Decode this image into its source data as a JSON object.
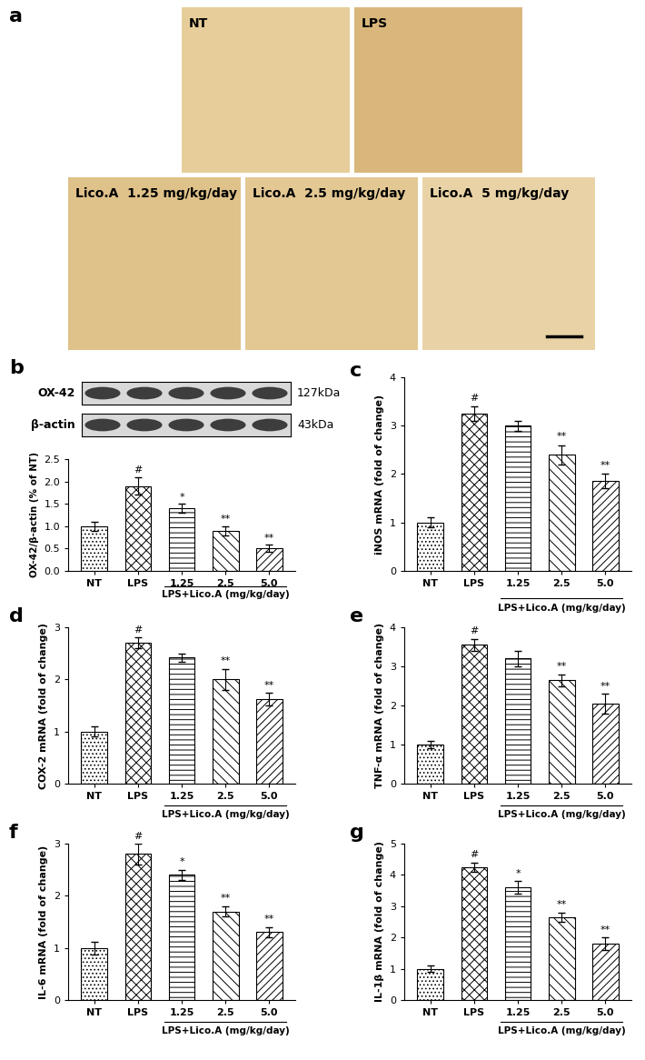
{
  "panel_a": {
    "panel": "a",
    "images": [
      "NT",
      "LPS",
      "Lico.A  1.25 mg/kg/day",
      "Lico.A  2.5 mg/kg/day",
      "Lico.A  5 mg/kg/day"
    ]
  },
  "blot": {
    "panel": "b",
    "bands": [
      {
        "name": "OX-42",
        "size": "127kDa"
      },
      {
        "name": "β-actin",
        "size": "43kDa"
      }
    ]
  },
  "chart_data": [
    {
      "panel": "b",
      "type": "bar",
      "ylabel": "OX-42/β-actin (% of NT)",
      "categories": [
        "NT",
        "LPS",
        "1.25",
        "2.5",
        "5.0"
      ],
      "group_label": "LPS+Lico.A (mg/kg/day)",
      "values": [
        1.0,
        1.9,
        1.4,
        0.9,
        0.5
      ],
      "errors": [
        0.1,
        0.2,
        0.1,
        0.1,
        0.08
      ],
      "annotations": [
        null,
        "#",
        "*",
        "**",
        "**"
      ],
      "ylim": [
        0,
        2.5
      ],
      "yticks": [
        {
          "value": 0,
          "label": "0.0"
        },
        {
          "value": 0.5,
          "label": "0.5"
        },
        {
          "value": 1.0,
          "label": "1.0"
        },
        {
          "value": 1.5,
          "label": "1.5"
        },
        {
          "value": 2.0,
          "label": "2.0"
        },
        {
          "value": 2.5,
          "label": "2.5"
        }
      ]
    },
    {
      "panel": "c",
      "type": "bar",
      "ylabel": "iNOS mRNA (fold of change)",
      "categories": [
        "NT",
        "LPS",
        "1.25",
        "2.5",
        "5.0"
      ],
      "group_label": "LPS+Lico.A (mg/kg/day)",
      "values": [
        1.0,
        3.25,
        3.0,
        2.4,
        1.85
      ],
      "errors": [
        0.1,
        0.15,
        0.1,
        0.2,
        0.15
      ],
      "annotations": [
        null,
        "#",
        null,
        "**",
        "**"
      ],
      "ylim": [
        0,
        4
      ],
      "yticks": [
        0,
        1,
        2,
        3,
        4
      ]
    },
    {
      "panel": "d",
      "type": "bar",
      "ylabel": "COX-2 mRNA (fold of change)",
      "categories": [
        "NT",
        "LPS",
        "1.25",
        "2.5",
        "5.0"
      ],
      "group_label": "LPS+Lico.A (mg/kg/day)",
      "values": [
        1.0,
        2.7,
        2.42,
        2.0,
        1.62
      ],
      "errors": [
        0.1,
        0.1,
        0.08,
        0.2,
        0.12
      ],
      "annotations": [
        null,
        "#",
        null,
        "**",
        "**"
      ],
      "ylim": [
        0,
        3
      ],
      "yticks": [
        0,
        1,
        2,
        3
      ]
    },
    {
      "panel": "e",
      "type": "bar",
      "ylabel": "TNF-α mRNA (fold of change)",
      "categories": [
        "NT",
        "LPS",
        "1.25",
        "2.5",
        "5.0"
      ],
      "group_label": "LPS+Lico.A (mg/kg/day)",
      "values": [
        1.0,
        3.55,
        3.2,
        2.65,
        2.05
      ],
      "errors": [
        0.1,
        0.15,
        0.2,
        0.15,
        0.25
      ],
      "annotations": [
        null,
        "#",
        null,
        "**",
        "**"
      ],
      "ylim": [
        0,
        4
      ],
      "yticks": [
        0,
        1,
        2,
        3,
        4
      ]
    },
    {
      "panel": "f",
      "type": "bar",
      "ylabel": "IL-6 mRNA (fold of change)",
      "categories": [
        "NT",
        "LPS",
        "1.25",
        "2.5",
        "5.0"
      ],
      "group_label": "LPS+Lico.A (mg/kg/day)",
      "values": [
        1.0,
        2.8,
        2.4,
        1.7,
        1.3
      ],
      "errors": [
        0.12,
        0.2,
        0.1,
        0.1,
        0.1
      ],
      "annotations": [
        null,
        "#",
        "*",
        "**",
        "**"
      ],
      "ylim": [
        0,
        3
      ],
      "yticks": [
        0,
        1,
        2,
        3
      ]
    },
    {
      "panel": "g",
      "type": "bar",
      "ylabel": "IL-1β mRNA (fold of change)",
      "categories": [
        "NT",
        "LPS",
        "1.25",
        "2.5",
        "5.0"
      ],
      "group_label": "LPS+Lico.A (mg/kg/day)",
      "values": [
        1.0,
        4.25,
        3.6,
        2.65,
        1.8
      ],
      "errors": [
        0.1,
        0.15,
        0.2,
        0.15,
        0.2
      ],
      "annotations": [
        null,
        "#",
        "*",
        "**",
        "**"
      ],
      "ylim": [
        0,
        5
      ],
      "yticks": [
        0,
        1,
        2,
        3,
        4,
        5
      ]
    }
  ]
}
